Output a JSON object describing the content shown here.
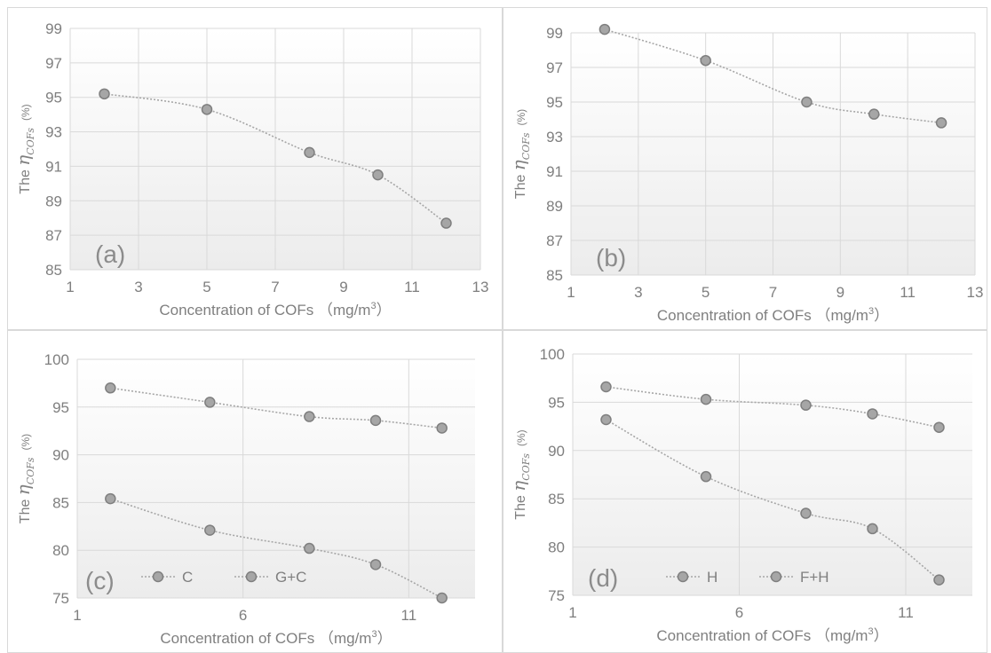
{
  "chart_data": [
    {
      "type": "line",
      "panel_label": "(a)",
      "ylabel_prefix": "The ",
      "ylabel_eta": "η",
      "ylabel_sub": "COFs",
      "ylabel_unit": "(%)",
      "xlabel": "Concentration of COFs （mg/m",
      "xlabel_sup": "3",
      "xlabel_close": "）",
      "xlim": [
        1,
        13
      ],
      "ylim": [
        85,
        99
      ],
      "xticks": [
        1,
        3,
        5,
        7,
        9,
        11,
        13
      ],
      "yticks": [
        85,
        87,
        89,
        91,
        93,
        95,
        97,
        99
      ],
      "grid": true,
      "series": [
        {
          "x": [
            2,
            5,
            8,
            10,
            12
          ],
          "y": [
            95.2,
            94.3,
            91.8,
            90.5,
            87.7
          ]
        }
      ]
    },
    {
      "type": "line",
      "panel_label": "(b)",
      "ylabel_prefix": "The ",
      "ylabel_eta": "η",
      "ylabel_sub": "COFs",
      "ylabel_unit": "(%)",
      "xlabel": "Concentration of COFs （mg/m",
      "xlabel_sup": "3",
      "xlabel_close": "）",
      "xlim": [
        1,
        13
      ],
      "ylim": [
        85,
        99
      ],
      "xticks": [
        1,
        3,
        5,
        7,
        9,
        11,
        13
      ],
      "yticks": [
        85,
        87,
        89,
        91,
        93,
        95,
        97,
        99
      ],
      "grid": true,
      "series": [
        {
          "x": [
            2,
            5,
            8,
            10,
            12
          ],
          "y": [
            99.2,
            97.4,
            95.0,
            94.3,
            93.8
          ]
        }
      ]
    },
    {
      "type": "line",
      "panel_label": "(c)",
      "ylabel_prefix": "The ",
      "ylabel_eta": "η",
      "ylabel_sub": "COFs",
      "ylabel_unit": "(%)",
      "xlabel": "Concentration of COFs （mg/m",
      "xlabel_sup": "3",
      "xlabel_close": "）",
      "xlim": [
        1,
        13
      ],
      "ylim": [
        75,
        100
      ],
      "xticks": [
        1,
        6,
        11
      ],
      "yticks": [
        75,
        80,
        85,
        90,
        95,
        100
      ],
      "grid": true,
      "legend_position": "bottom-left",
      "series": [
        {
          "name": "C",
          "x": [
            2,
            5,
            8,
            10,
            12
          ],
          "y": [
            85.4,
            82.1,
            80.2,
            78.5,
            75.0
          ]
        },
        {
          "name": "G+C",
          "x": [
            2,
            5,
            8,
            10,
            12
          ],
          "y": [
            97.0,
            95.5,
            94.0,
            93.6,
            92.8
          ]
        }
      ]
    },
    {
      "type": "line",
      "panel_label": "(d)",
      "ylabel_prefix": "The ",
      "ylabel_eta": "η",
      "ylabel_sub": "COFs",
      "ylabel_unit": "(%)",
      "xlabel": "Concentration of COFs （mg/m",
      "xlabel_sup": "3",
      "xlabel_close": "）",
      "xlim": [
        1,
        13
      ],
      "ylim": [
        75,
        100
      ],
      "xticks": [
        1,
        6,
        11
      ],
      "yticks": [
        75,
        80,
        85,
        90,
        95,
        100
      ],
      "grid": true,
      "legend_position": "bottom-left",
      "series": [
        {
          "name": "H",
          "x": [
            2,
            5,
            8,
            10,
            12
          ],
          "y": [
            93.2,
            87.3,
            83.5,
            81.9,
            76.6
          ]
        },
        {
          "name": "F+H",
          "x": [
            2,
            5,
            8,
            10,
            12
          ],
          "y": [
            96.6,
            95.3,
            94.7,
            93.8,
            92.4
          ]
        }
      ]
    }
  ],
  "colors": {
    "marker_fill": "#a6a6a6",
    "marker_stroke": "#7f7f7f",
    "line": "#a6a6a6",
    "grid": "#d9d9d9",
    "text": "#7f7f7f",
    "panel_label": "#8c8c8c"
  }
}
